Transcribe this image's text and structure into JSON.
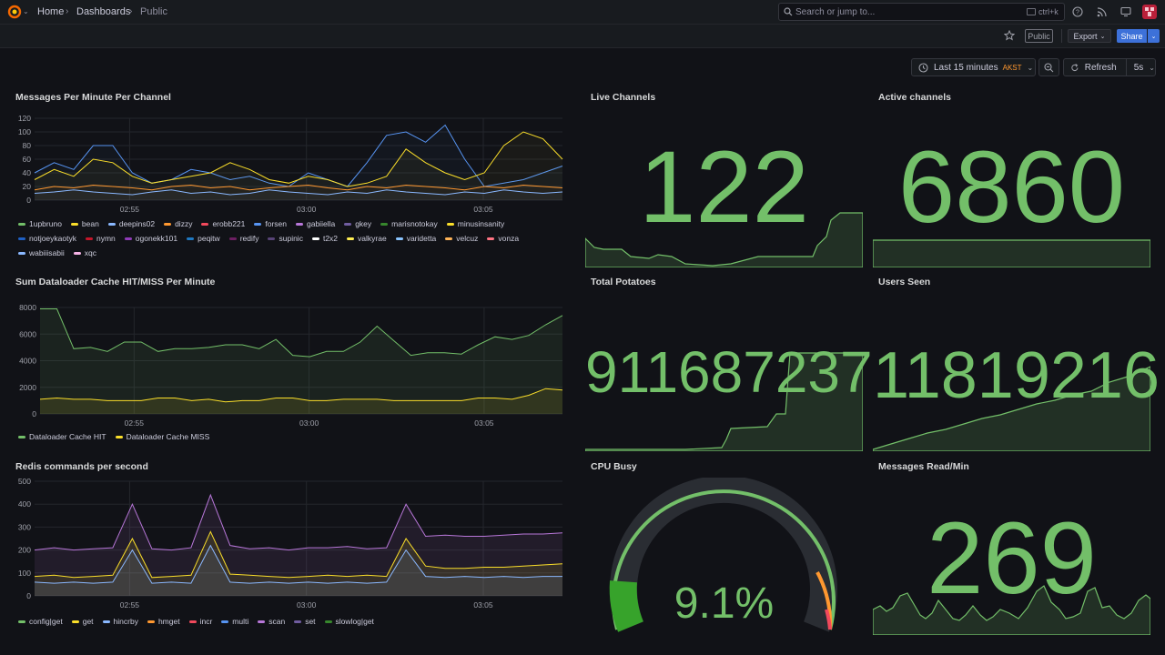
{
  "nav": {
    "crumbs": [
      "Home",
      "Dashboards",
      "Public"
    ],
    "search_placeholder": "Search or jump to...",
    "search_shortcut": "ctrl+k"
  },
  "toolbar": {
    "public_badge": "Public",
    "export_label": "Export",
    "share_label": "Share"
  },
  "timepicker": {
    "range_label": "Last 15 minutes",
    "timezone": "AKST",
    "refresh_label": "Refresh",
    "refresh_interval": "5s"
  },
  "colors": {
    "accent_green": "#73bf69",
    "yellow": "#fade2a",
    "blue": "#5794f2",
    "orange": "#ff9830",
    "red": "#f2495c",
    "share_blue": "#3d71d9"
  },
  "panels": {
    "messages": {
      "title": "Messages Per Minute Per Channel",
      "legend": [
        {
          "name": "1upbruno",
          "color": "#73bf69"
        },
        {
          "name": "bean",
          "color": "#fade2a"
        },
        {
          "name": "deepins02",
          "color": "#8ab8ff"
        },
        {
          "name": "dizzy",
          "color": "#ff9830"
        },
        {
          "name": "erobb221",
          "color": "#f2495c"
        },
        {
          "name": "forsen",
          "color": "#5794f2"
        },
        {
          "name": "gabiiella",
          "color": "#b877d9"
        },
        {
          "name": "gkey",
          "color": "#705da0"
        },
        {
          "name": "marisnotokay",
          "color": "#37872d"
        },
        {
          "name": "minusinsanity",
          "color": "#fade2a"
        },
        {
          "name": "notjoeykaotyk",
          "color": "#1f60c4"
        },
        {
          "name": "nymn",
          "color": "#c4162a"
        },
        {
          "name": "ogonekk101",
          "color": "#8f3bb8"
        },
        {
          "name": "peqitw",
          "color": "#1f78c1"
        },
        {
          "name": "redify",
          "color": "#6d1f62"
        },
        {
          "name": "supinic",
          "color": "#584477"
        },
        {
          "name": "t2x2",
          "color": "#ffffff"
        },
        {
          "name": "valkyrae",
          "color": "#ffee52"
        },
        {
          "name": "varidetta",
          "color": "#8ac4ff"
        },
        {
          "name": "velcuz",
          "color": "#ffb357"
        },
        {
          "name": "vonza",
          "color": "#ff7383"
        },
        {
          "name": "wabiiisabii",
          "color": "#8ab8ff"
        },
        {
          "name": "xqc",
          "color": "#f6b3e6"
        }
      ]
    },
    "cache": {
      "title": "Sum Dataloader Cache HIT/MISS Per Minute",
      "legend": [
        {
          "name": "Dataloader Cache HIT",
          "color": "#73bf69"
        },
        {
          "name": "Dataloader Cache MISS",
          "color": "#fade2a"
        }
      ]
    },
    "redis": {
      "title": "Redis commands per second",
      "legend": [
        {
          "name": "config|get",
          "color": "#73bf69"
        },
        {
          "name": "get",
          "color": "#fade2a"
        },
        {
          "name": "hincrby",
          "color": "#8ab8ff"
        },
        {
          "name": "hmget",
          "color": "#ff9830"
        },
        {
          "name": "incr",
          "color": "#f2495c"
        },
        {
          "name": "multi",
          "color": "#5794f2"
        },
        {
          "name": "scan",
          "color": "#b877d9"
        },
        {
          "name": "set",
          "color": "#705da0"
        },
        {
          "name": "slowlog|get",
          "color": "#37872d"
        }
      ]
    },
    "live_channels": {
      "title": "Live Channels",
      "value": "122"
    },
    "active_channels": {
      "title": "Active channels",
      "value": "6860"
    },
    "total_potatoes": {
      "title": "Total Potatoes",
      "value": "911687237"
    },
    "users_seen": {
      "title": "Users Seen",
      "value": "11819216"
    },
    "cpu_busy": {
      "title": "CPU Busy",
      "value": "9.1%",
      "percent": 9.1
    },
    "messages_read": {
      "title": "Messages Read/Min",
      "value": "269"
    }
  },
  "chart_data": [
    {
      "type": "line",
      "title": "Messages Per Minute Per Channel",
      "x_ticks": [
        "02:55",
        "03:00",
        "03:05"
      ],
      "ylim": [
        0,
        120
      ],
      "y_ticks": [
        0,
        20,
        40,
        60,
        80,
        100,
        120
      ],
      "series": [
        {
          "name": "forsen",
          "values": [
            40,
            55,
            45,
            80,
            80,
            40,
            25,
            30,
            45,
            40,
            30,
            35,
            25,
            20,
            40,
            30,
            20,
            55,
            95,
            100,
            85,
            110,
            60,
            20,
            25,
            30,
            40,
            50
          ]
        },
        {
          "name": "1upbruno",
          "values": [
            30,
            45,
            35,
            60,
            55,
            35,
            25,
            30,
            35,
            40,
            55,
            45,
            30,
            25,
            35,
            30,
            20,
            25,
            35,
            75,
            55,
            40,
            30,
            40,
            80,
            100,
            90,
            60
          ]
        },
        {
          "name": "bean",
          "values": [
            15,
            20,
            18,
            22,
            20,
            18,
            15,
            20,
            22,
            18,
            20,
            15,
            18,
            20,
            22,
            18,
            15,
            20,
            18,
            22,
            20,
            18,
            15,
            20,
            18,
            22,
            20,
            18
          ]
        },
        {
          "name": "deepins02",
          "values": [
            10,
            12,
            15,
            12,
            10,
            8,
            12,
            15,
            10,
            12,
            8,
            10,
            15,
            12,
            10,
            8,
            12,
            10,
            15,
            12,
            10,
            8,
            12,
            10,
            15,
            12,
            10,
            12
          ]
        }
      ]
    },
    {
      "type": "line",
      "title": "Sum Dataloader Cache HIT/MISS Per Minute",
      "x_ticks": [
        "02:55",
        "03:00",
        "03:05"
      ],
      "ylim": [
        0,
        8000
      ],
      "y_ticks": [
        0,
        2000,
        4000,
        6000,
        8000
      ],
      "series": [
        {
          "name": "Dataloader Cache HIT",
          "values": [
            7900,
            7900,
            4900,
            5000,
            4700,
            5400,
            5400,
            4700,
            4900,
            4900,
            5000,
            5200,
            5200,
            4900,
            5600,
            4400,
            4300,
            4700,
            4700,
            5400,
            6600,
            5500,
            4400,
            4600,
            4600,
            4500,
            5200,
            5800,
            5600,
            5900,
            6700,
            7400
          ]
        },
        {
          "name": "Dataloader Cache MISS",
          "values": [
            1100,
            1200,
            1100,
            1100,
            1000,
            1000,
            1000,
            1200,
            1200,
            1000,
            1100,
            900,
            1000,
            1000,
            1200,
            1200,
            1000,
            1000,
            1100,
            1100,
            1100,
            1000,
            1000,
            1000,
            1000,
            1000,
            1200,
            1200,
            1100,
            1400,
            1900,
            1800
          ]
        }
      ]
    },
    {
      "type": "area",
      "title": "Redis commands per second",
      "x_ticks": [
        "02:55",
        "03:00",
        "03:05"
      ],
      "ylim": [
        0,
        500
      ],
      "y_ticks": [
        0,
        100,
        200,
        300,
        400,
        500
      ],
      "series": [
        {
          "name": "config|get",
          "values": [
            200,
            210,
            200,
            205,
            210,
            400,
            205,
            200,
            210,
            440,
            220,
            205,
            210,
            200,
            210,
            210,
            215,
            205,
            210,
            400,
            260,
            265,
            260,
            260,
            265,
            270,
            270,
            275
          ]
        },
        {
          "name": "get",
          "values": [
            85,
            90,
            80,
            85,
            90,
            250,
            80,
            85,
            90,
            280,
            95,
            90,
            85,
            80,
            85,
            90,
            85,
            90,
            85,
            250,
            130,
            120,
            120,
            125,
            125,
            130,
            135,
            140
          ]
        },
        {
          "name": "hincrby",
          "values": [
            60,
            55,
            60,
            55,
            60,
            200,
            55,
            60,
            55,
            220,
            60,
            55,
            60,
            55,
            60,
            55,
            60,
            55,
            60,
            200,
            85,
            80,
            85,
            80,
            85,
            80,
            85,
            85
          ]
        }
      ]
    }
  ]
}
